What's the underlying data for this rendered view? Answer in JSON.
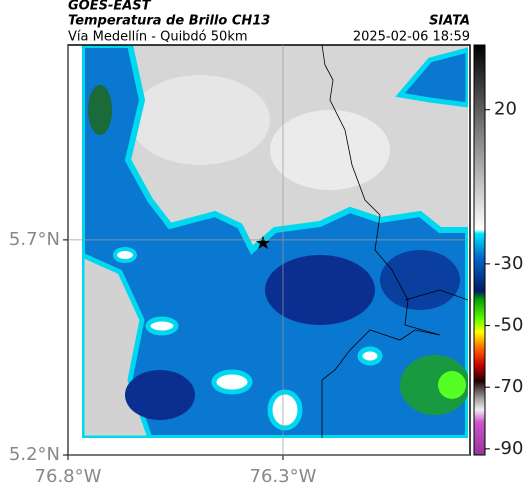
{
  "header": {
    "source": "GOES-EAST",
    "product": "Temperatura de Brillo CH13",
    "route": "Vía Medellín - Quibdó 50km",
    "agency": "SIATA",
    "timestamp": "2025-02-06 18:59"
  },
  "map": {
    "xlim": [
      -76.8,
      -75.865
    ],
    "ylim": [
      5.2,
      6.153
    ],
    "xticks": [
      {
        "value": -76.8,
        "label": "76.8°W"
      },
      {
        "value": -76.3,
        "label": "76.3°W"
      }
    ],
    "yticks": [
      {
        "value": 5.7,
        "label": "5.7°N"
      },
      {
        "value": 5.2,
        "label": "5.2°N"
      }
    ],
    "grid": true
  },
  "colorbar": {
    "clim": [
      -92,
      41
    ],
    "ticks": [
      20,
      -30,
      -50,
      -70,
      -90
    ]
  }
}
